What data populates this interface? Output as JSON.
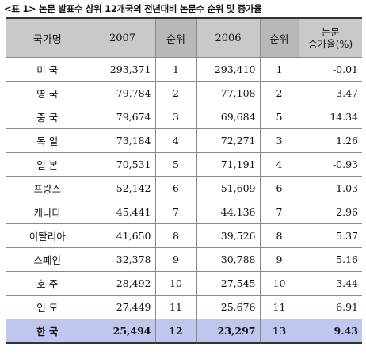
{
  "caption": "<표 1>  논문 발표수 상위 12개국의 전년대비 논문수 순위 및 증가율",
  "table": {
    "headers": {
      "country": "국가명",
      "y2007": "2007",
      "rank1": "순위",
      "y2006": "2006",
      "rank2": "순위",
      "growth_line1": "논문",
      "growth_line2": "증가율(%)"
    },
    "rows": [
      {
        "country": "미 국",
        "v2007": "293,371",
        "r2007": "1",
        "v2006": "293,410",
        "r2006": "1",
        "growth": "-0.01"
      },
      {
        "country": "영 국",
        "v2007": "79,784",
        "r2007": "2",
        "v2006": "77,108",
        "r2006": "2",
        "growth": "3.47"
      },
      {
        "country": "중 국",
        "v2007": "79,674",
        "r2007": "3",
        "v2006": "69,684",
        "r2006": "5",
        "growth": "14.34"
      },
      {
        "country": "독 일",
        "v2007": "73,184",
        "r2007": "4",
        "v2006": "72,271",
        "r2006": "3",
        "growth": "1.26"
      },
      {
        "country": "일 본",
        "v2007": "70,531",
        "r2007": "5",
        "v2006": "71,191",
        "r2006": "4",
        "growth": "-0.93"
      },
      {
        "country": "프랑스",
        "v2007": "52,142",
        "r2007": "6",
        "v2006": "51,609",
        "r2006": "6",
        "growth": "1.03"
      },
      {
        "country": "캐나다",
        "v2007": "45,441",
        "r2007": "7",
        "v2006": "44,136",
        "r2006": "7",
        "growth": "2.96"
      },
      {
        "country": "이탈리아",
        "v2007": "41,650",
        "r2007": "8",
        "v2006": "39,526",
        "r2006": "8",
        "growth": "5.37"
      },
      {
        "country": "스페인",
        "v2007": "32,378",
        "r2007": "9",
        "v2006": "30,788",
        "r2006": "9",
        "growth": "5.16"
      },
      {
        "country": "호 주",
        "v2007": "28,492",
        "r2007": "10",
        "v2006": "27,545",
        "r2006": "10",
        "growth": "3.44"
      },
      {
        "country": "인 도",
        "v2007": "27,449",
        "r2007": "11",
        "v2006": "25,676",
        "r2006": "11",
        "growth": "6.91"
      },
      {
        "country": "한 국",
        "v2007": "25,494",
        "r2007": "12",
        "v2006": "23,297",
        "r2006": "13",
        "growth": "9.43"
      }
    ],
    "highlight_color": "#bfc7ee"
  }
}
